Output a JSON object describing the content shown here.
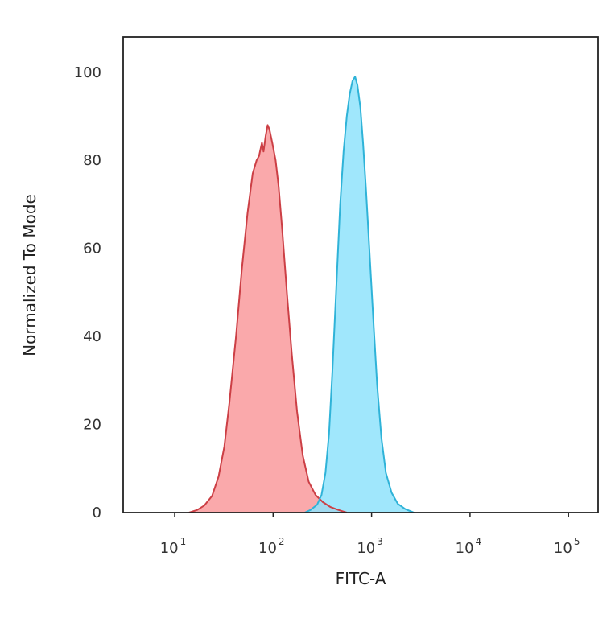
{
  "chart_data": {
    "type": "area",
    "title": "",
    "xlabel": "FITC-A",
    "ylabel": "Normalized To Mode",
    "x_scale": "log",
    "xlim": [
      3,
      200000
    ],
    "ylim": [
      0,
      108
    ],
    "y_ticks": [
      {
        "value": 0,
        "label": "0"
      },
      {
        "value": 20,
        "label": "20"
      },
      {
        "value": 40,
        "label": "40"
      },
      {
        "value": 60,
        "label": "60"
      },
      {
        "value": 80,
        "label": "80"
      },
      {
        "value": 100,
        "label": "100"
      }
    ],
    "x_ticks": [
      {
        "value": 10,
        "base": "10",
        "exp": "1"
      },
      {
        "value": 100,
        "base": "10",
        "exp": "2"
      },
      {
        "value": 1000,
        "base": "10",
        "exp": "3"
      },
      {
        "value": 10000,
        "base": "10",
        "exp": "4"
      },
      {
        "value": 100000,
        "base": "10",
        "exp": "5"
      }
    ],
    "grid": false,
    "legend": "none",
    "series": [
      {
        "fill": "#f99a9c",
        "stroke": "#cc3f45",
        "points": [
          [
            14,
            0
          ],
          [
            17,
            0.6
          ],
          [
            20,
            1.6
          ],
          [
            24,
            3.8
          ],
          [
            28,
            8.2
          ],
          [
            32,
            15
          ],
          [
            36,
            25
          ],
          [
            42,
            40
          ],
          [
            48,
            55
          ],
          [
            55,
            68
          ],
          [
            62,
            77
          ],
          [
            68,
            80
          ],
          [
            72,
            81
          ],
          [
            77,
            84
          ],
          [
            80,
            82
          ],
          [
            84,
            85.5
          ],
          [
            88,
            88
          ],
          [
            92,
            87
          ],
          [
            98,
            84
          ],
          [
            106,
            80
          ],
          [
            114,
            74
          ],
          [
            124,
            64
          ],
          [
            138,
            50
          ],
          [
            155,
            36
          ],
          [
            175,
            23
          ],
          [
            200,
            13
          ],
          [
            230,
            7
          ],
          [
            270,
            4
          ],
          [
            320,
            2.4
          ],
          [
            380,
            1.3
          ],
          [
            460,
            0.6
          ],
          [
            560,
            0
          ]
        ]
      },
      {
        "fill": "#8fe3fb",
        "stroke": "#2fb3d8",
        "points": [
          [
            210,
            0
          ],
          [
            240,
            0.6
          ],
          [
            280,
            1.8
          ],
          [
            310,
            4
          ],
          [
            340,
            9
          ],
          [
            370,
            18
          ],
          [
            400,
            32
          ],
          [
            440,
            52
          ],
          [
            480,
            70
          ],
          [
            520,
            82
          ],
          [
            560,
            90
          ],
          [
            600,
            95
          ],
          [
            640,
            98
          ],
          [
            680,
            99
          ],
          [
            720,
            97
          ],
          [
            770,
            92
          ],
          [
            820,
            84
          ],
          [
            880,
            73
          ],
          [
            950,
            60
          ],
          [
            1040,
            44
          ],
          [
            1140,
            29
          ],
          [
            1260,
            17
          ],
          [
            1400,
            9
          ],
          [
            1600,
            4.5
          ],
          [
            1850,
            2
          ],
          [
            2200,
            0.8
          ],
          [
            2700,
            0
          ]
        ]
      }
    ]
  }
}
